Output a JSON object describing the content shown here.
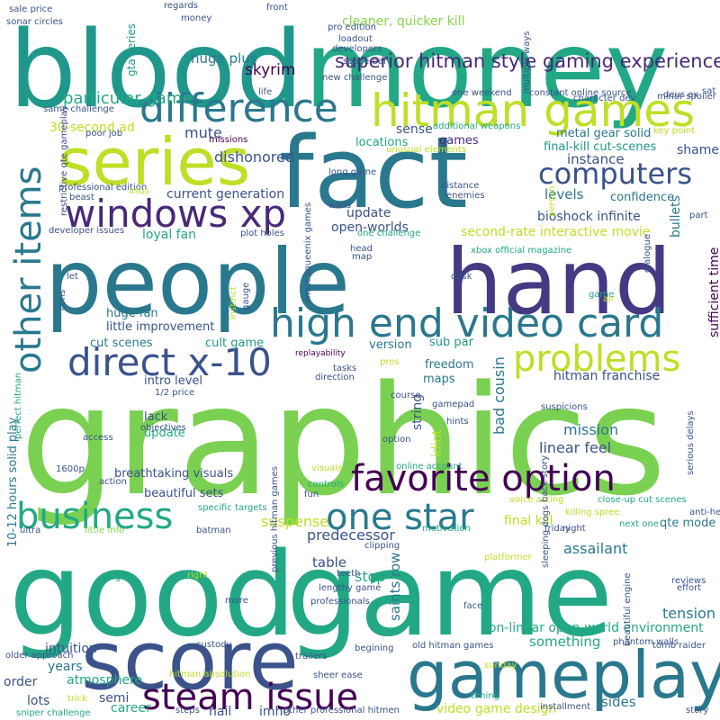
{
  "words": [
    {
      "text": "graphics",
      "color": "#7ad151"
    },
    {
      "text": "good",
      "color": "#22a884"
    },
    {
      "text": "game",
      "color": "#22a884"
    },
    {
      "text": "blood",
      "color": "#1f988b"
    },
    {
      "text": "money",
      "color": "#22a884"
    },
    {
      "text": "people",
      "color": "#2a788e"
    },
    {
      "text": "hand",
      "color": "#443983"
    },
    {
      "text": "fact",
      "color": "#2a788e"
    },
    {
      "text": "score",
      "color": "#3b528b"
    },
    {
      "text": "gameplay",
      "color": "#2a788e"
    },
    {
      "text": "series",
      "color": "#bddf26"
    },
    {
      "text": "hitman games",
      "color": "#bddf26"
    },
    {
      "text": "difference",
      "color": "#2a788e"
    },
    {
      "text": "high end video card",
      "color": "#2a788e"
    },
    {
      "text": "favorite option",
      "color": "#440154"
    },
    {
      "text": "steam issue",
      "color": "#440154"
    },
    {
      "text": "business",
      "color": "#22a884"
    },
    {
      "text": "one star",
      "color": "#2a788e"
    },
    {
      "text": "problems",
      "color": "#bddf26"
    },
    {
      "text": "direct x-10",
      "color": "#3b528b"
    },
    {
      "text": "windows xp",
      "color": "#482878"
    },
    {
      "text": "other items",
      "color": "#2a788e"
    },
    {
      "text": "computers",
      "color": "#3b528b"
    },
    {
      "text": "superior hitman style gaming experience",
      "color": "#482878"
    },
    {
      "text": "metal gear solid",
      "color": "#2a788e"
    },
    {
      "text": "bioshock infinite",
      "color": "#3b528b"
    },
    {
      "text": "second-rate interactive movie",
      "color": "#bddf26"
    },
    {
      "text": "non-linear open-world environment",
      "color": "#22a884"
    },
    {
      "text": "final-kill cut-scenes",
      "color": "#1f988b"
    },
    {
      "text": "sufficient time",
      "color": "#440154"
    },
    {
      "text": "cleaner, quicker kill",
      "color": "#86d549"
    },
    {
      "text": "huge plus",
      "color": "#2a788e"
    },
    {
      "text": "skyrim",
      "color": "#440154"
    },
    {
      "text": "gta series",
      "color": "#1f988b"
    },
    {
      "text": "particular game",
      "color": "#22a884"
    },
    {
      "text": "30-second ad",
      "color": "#bddf26"
    },
    {
      "text": "dishonored",
      "color": "#3b528b"
    },
    {
      "text": "mute",
      "color": "#3b528b"
    },
    {
      "text": "locations",
      "color": "#22a884"
    },
    {
      "text": "sense",
      "color": "#3b528b"
    },
    {
      "text": "games",
      "color": "#482878"
    },
    {
      "text": "instance",
      "color": "#3b528b"
    },
    {
      "text": "shame",
      "color": "#3b528b"
    },
    {
      "text": "levels",
      "color": "#2a788e"
    },
    {
      "text": "confidence",
      "color": "#2a788e"
    },
    {
      "text": "current generation",
      "color": "#3b528b"
    },
    {
      "text": "loyal fan",
      "color": "#22a884"
    },
    {
      "text": "update",
      "color": "#3b528b"
    },
    {
      "text": "open-worlds",
      "color": "#3b528b"
    },
    {
      "text": "bullets",
      "color": "#2a788e"
    },
    {
      "text": "huge fan",
      "color": "#2a788e"
    },
    {
      "text": "little improvement",
      "color": "#3b528b"
    },
    {
      "text": "cult game",
      "color": "#1f988b"
    },
    {
      "text": "cut scenes",
      "color": "#2a788e"
    },
    {
      "text": "version",
      "color": "#2a788e"
    },
    {
      "text": "sub par",
      "color": "#1f988b"
    },
    {
      "text": "freedom",
      "color": "#2a788e"
    },
    {
      "text": "maps",
      "color": "#2a788e"
    },
    {
      "text": "hitman franchise",
      "color": "#3b528b"
    },
    {
      "text": "intro level",
      "color": "#3b528b"
    },
    {
      "text": "lack",
      "color": "#3b528b"
    },
    {
      "text": "update",
      "color": "#22a884"
    },
    {
      "text": "breathtaking visuals",
      "color": "#3b528b"
    },
    {
      "text": "beautiful sets",
      "color": "#3b528b"
    },
    {
      "text": "string",
      "color": "#3b528b"
    },
    {
      "text": "mission",
      "color": "#2a788e"
    },
    {
      "text": "bad cousin",
      "color": "#2a788e"
    },
    {
      "text": "idiot",
      "color": "#bddf26"
    },
    {
      "text": "linear feel",
      "color": "#3b528b"
    },
    {
      "text": "final kill",
      "color": "#bddf26"
    },
    {
      "text": "qte mode",
      "color": "#2a788e"
    },
    {
      "text": "suspense",
      "color": "#bddf26"
    },
    {
      "text": "predecessor",
      "color": "#3b528b"
    },
    {
      "text": "table",
      "color": "#3b528b"
    },
    {
      "text": "stop",
      "color": "#22a884"
    },
    {
      "text": "saints row",
      "color": "#2a788e"
    },
    {
      "text": "assailant",
      "color": "#2a788e"
    },
    {
      "text": "tension",
      "color": "#2a788e"
    },
    {
      "text": "something",
      "color": "#22a884"
    },
    {
      "text": "intuition",
      "color": "#3b528b"
    },
    {
      "text": "years",
      "color": "#2a788e"
    },
    {
      "text": "atmosphere",
      "color": "#22a884"
    },
    {
      "text": "order",
      "color": "#3b528b"
    },
    {
      "text": "lots",
      "color": "#3b528b"
    },
    {
      "text": "semi",
      "color": "#3b528b"
    },
    {
      "text": "career",
      "color": "#22a884"
    },
    {
      "text": "hail",
      "color": "#3b528b"
    },
    {
      "text": "imho",
      "color": "#3b528b"
    },
    {
      "text": "sides",
      "color": "#2a788e"
    },
    {
      "text": "video game design",
      "color": "#bddf26"
    },
    {
      "text": "10-12 hours solid play",
      "color": "#2a788e"
    },
    {
      "text": "replayability",
      "color": "#440154"
    },
    {
      "text": "1/2 price",
      "color": "#3b528b"
    },
    {
      "text": "objectives",
      "color": "#3b528b"
    },
    {
      "text": "access",
      "color": "#3b528b"
    },
    {
      "text": "1600p",
      "color": "#3b528b"
    },
    {
      "text": "action",
      "color": "#3b528b"
    },
    {
      "text": "ultra",
      "color": "#3b528b"
    },
    {
      "text": "batman",
      "color": "#3b528b"
    },
    {
      "text": "little info",
      "color": "#86d549"
    },
    {
      "text": "specific targets",
      "color": "#22a884"
    },
    {
      "text": "omg",
      "color": "#22a884"
    },
    {
      "text": "right",
      "color": "#bddf26"
    },
    {
      "text": "more",
      "color": "#3b528b"
    },
    {
      "text": "custody",
      "color": "#3b528b"
    },
    {
      "text": "older approach",
      "color": "#3b528b"
    },
    {
      "text": "sniper challenge",
      "color": "#22a884"
    },
    {
      "text": "trick",
      "color": "#bddf26"
    },
    {
      "text": "steps",
      "color": "#3b528b"
    },
    {
      "text": "hitman absolution",
      "color": "#bddf26"
    },
    {
      "text": "trailers",
      "color": "#3b528b"
    },
    {
      "text": "begining",
      "color": "#3b528b"
    },
    {
      "text": "sheer ease",
      "color": "#3b528b"
    },
    {
      "text": "other professional hitmen",
      "color": "#3b528b"
    },
    {
      "text": "sunday",
      "color": "#bddf26"
    },
    {
      "text": "timing",
      "color": "#22a884"
    },
    {
      "text": "installment",
      "color": "#3b528b"
    },
    {
      "text": "story",
      "color": "#3b528b"
    },
    {
      "text": "old hitman games",
      "color": "#3b528b"
    },
    {
      "text": "tomb raider",
      "color": "#3b528b"
    },
    {
      "text": "phantom walls",
      "color": "#3b528b"
    },
    {
      "text": "effort",
      "color": "#3b528b"
    },
    {
      "text": "reviews",
      "color": "#3b528b"
    },
    {
      "text": "anti-hero",
      "color": "#3b528b"
    },
    {
      "text": "close-up cut scenes",
      "color": "#22a884"
    },
    {
      "text": "voice acting",
      "color": "#bddf26"
    },
    {
      "text": "motivation",
      "color": "#22a884"
    },
    {
      "text": "friday",
      "color": "#3b528b"
    },
    {
      "text": "night",
      "color": "#3b528b"
    },
    {
      "text": "next one",
      "color": "#22a884"
    },
    {
      "text": "platformer",
      "color": "#bddf26"
    },
    {
      "text": "face",
      "color": "#3b528b"
    },
    {
      "text": "lengthy game",
      "color": "#3b528b"
    },
    {
      "text": "professionals",
      "color": "#3b528b"
    },
    {
      "text": "teeth",
      "color": "#3b528b"
    },
    {
      "text": "clipping",
      "color": "#3b528b"
    },
    {
      "text": "fun",
      "color": "#3b528b"
    },
    {
      "text": "controls",
      "color": "#22a884"
    },
    {
      "text": "visuals",
      "color": "#bddf26"
    },
    {
      "text": "online account",
      "color": "#22a884"
    },
    {
      "text": "option",
      "color": "#3b528b"
    },
    {
      "text": "back story",
      "color": "#3b528b"
    },
    {
      "text": "killing spree",
      "color": "#bddf26"
    },
    {
      "text": "suspicions",
      "color": "#3b528b"
    },
    {
      "text": "serious delays",
      "color": "#3b528b"
    },
    {
      "text": "beautiful engine",
      "color": "#3b528b"
    },
    {
      "text": "sleeping dogs",
      "color": "#3b528b"
    },
    {
      "text": "hints",
      "color": "#3b528b"
    },
    {
      "text": "course",
      "color": "#3b528b"
    },
    {
      "text": "gamepad",
      "color": "#3b528b"
    },
    {
      "text": "pros",
      "color": "#bddf26"
    },
    {
      "text": "tasks",
      "color": "#3b528b"
    },
    {
      "text": "direction",
      "color": "#3b528b"
    },
    {
      "text": "perfect hitman",
      "color": "#22a884"
    },
    {
      "text": "previous hitman games",
      "color": "#3b528b"
    },
    {
      "text": "instinct",
      "color": "#bddf26"
    },
    {
      "text": "gauge",
      "color": "#3b528b"
    },
    {
      "text": "most squeenix games",
      "color": "#3b528b"
    },
    {
      "text": "sale price",
      "color": "#3b528b"
    },
    {
      "text": "sonar circles",
      "color": "#3b528b"
    },
    {
      "text": "money",
      "color": "#3b528b"
    },
    {
      "text": "regards",
      "color": "#3b528b"
    },
    {
      "text": "front",
      "color": "#3b528b"
    },
    {
      "text": "loadout",
      "color": "#3b528b"
    },
    {
      "text": "pro edition",
      "color": "#3b528b"
    },
    {
      "text": "developers",
      "color": "#3b528b"
    },
    {
      "text": "space bar",
      "color": "#3b528b"
    },
    {
      "text": "new challenge",
      "color": "#3b528b"
    },
    {
      "text": "character dev",
      "color": "#3b528b"
    },
    {
      "text": "minor spoiler",
      "color": "#3b528b"
    },
    {
      "text": "multiple ways",
      "color": "#3b528b"
    },
    {
      "text": "deus ex",
      "color": "#3b528b"
    },
    {
      "text": "sat",
      "color": "#3b528b"
    },
    {
      "text": "life",
      "color": "#3b528b"
    },
    {
      "text": "one weekend",
      "color": "#3b528b"
    },
    {
      "text": "constant online source",
      "color": "#3b528b"
    },
    {
      "text": "same challenge",
      "color": "#3b528b"
    },
    {
      "text": "poor job",
      "color": "#3b528b"
    },
    {
      "text": "missions",
      "color": "#440154"
    },
    {
      "text": "additional weapons",
      "color": "#22a884"
    },
    {
      "text": "unusual elements",
      "color": "#bddf26"
    },
    {
      "text": "key point",
      "color": "#bddf26"
    },
    {
      "text": "restrictive qte gameplay",
      "color": "#3b528b"
    },
    {
      "text": "professional edition",
      "color": "#3b528b"
    },
    {
      "text": "beast",
      "color": "#3b528b"
    },
    {
      "text": "asus",
      "color": "#bddf26"
    },
    {
      "text": "long game",
      "color": "#3b528b"
    },
    {
      "text": "distance",
      "color": "#3b528b"
    },
    {
      "text": "enemies",
      "color": "#3b528b"
    },
    {
      "text": "person",
      "color": "#bddf26"
    },
    {
      "text": "part",
      "color": "#3b528b"
    },
    {
      "text": "walls",
      "color": "#3b528b"
    },
    {
      "text": "developer issues",
      "color": "#3b528b"
    },
    {
      "text": "plot holes",
      "color": "#3b528b"
    },
    {
      "text": "one challenge",
      "color": "#22a884"
    },
    {
      "text": "xbox official magazine",
      "color": "#22a884"
    },
    {
      "text": "head",
      "color": "#3b528b"
    },
    {
      "text": "map",
      "color": "#3b528b"
    },
    {
      "text": "desk",
      "color": "#3b528b"
    },
    {
      "text": "dialogue",
      "color": "#3b528b"
    },
    {
      "text": "let",
      "color": "#3b528b"
    },
    {
      "text": "game",
      "color": "#22a884"
    },
    {
      "text": "air",
      "color": "#bddf26"
    },
    {
      "text": "cons",
      "color": "#3b528b"
    }
  ]
}
